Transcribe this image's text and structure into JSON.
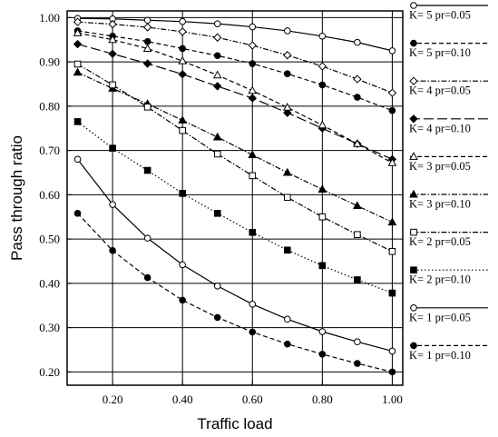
{
  "chart_data": {
    "type": "line",
    "title": "",
    "xlabel": "Traffic load",
    "ylabel": "Pass through ratio",
    "xlim": [
      0.07,
      1.03
    ],
    "ylim": [
      0.17,
      1.015
    ],
    "x_ticks": [
      0.2,
      0.4,
      0.6,
      0.8,
      1.0
    ],
    "x_tick_labels": [
      "0.20",
      "0.40",
      "0.60",
      "0.80",
      "1.00"
    ],
    "y_ticks": [
      0.2,
      0.3,
      0.4,
      0.5,
      0.6,
      0.7,
      0.8,
      0.9,
      1.0
    ],
    "y_tick_labels": [
      "0.20",
      "0.30",
      "0.40",
      "0.50",
      "0.60",
      "0.70",
      "0.80",
      "0.90",
      "1.00"
    ],
    "grid": true,
    "legend_position": "right",
    "x": [
      0.1,
      0.2,
      0.3,
      0.4,
      0.5,
      0.6,
      0.7,
      0.8,
      0.9,
      1.0
    ],
    "series": [
      {
        "name": "K= 5 pr=0.05",
        "marker": "circle-open",
        "dash": "solid",
        "values": [
          0.998,
          0.997,
          0.994,
          0.991,
          0.986,
          0.979,
          0.97,
          0.958,
          0.944,
          0.925
        ]
      },
      {
        "name": "K= 5 pr=0.10",
        "marker": "circle-filled",
        "dash": "dash",
        "values": [
          0.97,
          0.958,
          0.946,
          0.93,
          0.914,
          0.896,
          0.873,
          0.848,
          0.82,
          0.79
        ]
      },
      {
        "name": "K= 4 pr=0.05",
        "marker": "diamond-open",
        "dash": "dashdot",
        "values": [
          0.99,
          0.985,
          0.978,
          0.968,
          0.955,
          0.937,
          0.915,
          0.89,
          0.861,
          0.83
        ]
      },
      {
        "name": "K= 4 pr=0.10",
        "marker": "diamond-filled",
        "dash": "longdash",
        "values": [
          0.94,
          0.918,
          0.896,
          0.872,
          0.845,
          0.818,
          0.785,
          0.75,
          0.715,
          0.68
        ]
      },
      {
        "name": "K= 3 pr=0.05",
        "marker": "triangle-open",
        "dash": "dash",
        "values": [
          0.965,
          0.95,
          0.93,
          0.902,
          0.87,
          0.835,
          0.797,
          0.757,
          0.715,
          0.672
        ]
      },
      {
        "name": "K= 3 pr=0.10",
        "marker": "triangle-filled",
        "dash": "dashdot",
        "values": [
          0.876,
          0.84,
          0.805,
          0.768,
          0.73,
          0.69,
          0.65,
          0.612,
          0.575,
          0.538
        ]
      },
      {
        "name": "K= 2 pr=0.05",
        "marker": "square-open",
        "dash": "dashdot",
        "values": [
          0.895,
          0.848,
          0.798,
          0.745,
          0.692,
          0.643,
          0.594,
          0.55,
          0.51,
          0.472
        ]
      },
      {
        "name": "K= 2 pr=0.10",
        "marker": "square-filled",
        "dash": "dot",
        "values": [
          0.765,
          0.705,
          0.655,
          0.603,
          0.558,
          0.515,
          0.475,
          0.44,
          0.408,
          0.378
        ]
      },
      {
        "name": "K= 1 pr=0.05",
        "marker": "circle-open",
        "dash": "solid",
        "values": [
          0.68,
          0.578,
          0.502,
          0.442,
          0.394,
          0.353,
          0.319,
          0.291,
          0.268,
          0.247
        ]
      },
      {
        "name": "K= 1 pr=0.10",
        "marker": "circle-filled",
        "dash": "dash",
        "values": [
          0.558,
          0.474,
          0.413,
          0.362,
          0.323,
          0.29,
          0.263,
          0.24,
          0.219,
          0.2
        ]
      }
    ]
  }
}
